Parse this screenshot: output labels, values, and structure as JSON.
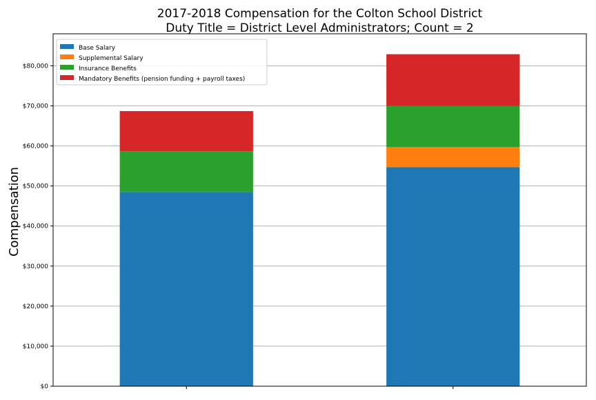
{
  "chart_data": {
    "type": "bar",
    "stacked": true,
    "title": "2017-2018 Compensation for the Colton School District",
    "subtitle": "Duty Title = District Level Administrators; Count = 2",
    "xlabel": "",
    "ylabel": "Compensation",
    "categories": [
      "",
      ""
    ],
    "ylim": [
      0,
      88000
    ],
    "yticks": [
      0,
      10000,
      20000,
      30000,
      40000,
      50000,
      60000,
      70000,
      80000
    ],
    "ytick_labels": [
      "$0",
      "$10,000",
      "$20,000",
      "$30,000",
      "$40,000",
      "$50,000",
      "$60,000",
      "$70,000",
      "$80,000"
    ],
    "grid": "horizontal",
    "legend_position": "top-left",
    "series": [
      {
        "name": "Base Salary",
        "color": "#1f77b4",
        "values": [
          48500,
          54700
        ]
      },
      {
        "name": "Supplemental Salary",
        "color": "#ff7f0e",
        "values": [
          0,
          5000
        ]
      },
      {
        "name": "Insurance Benefits",
        "color": "#2ca02c",
        "values": [
          10200,
          10300
        ]
      },
      {
        "name": "Mandatory Benefits (pension funding + payroll taxes)",
        "color": "#d62728",
        "values": [
          10000,
          12900
        ]
      }
    ]
  }
}
